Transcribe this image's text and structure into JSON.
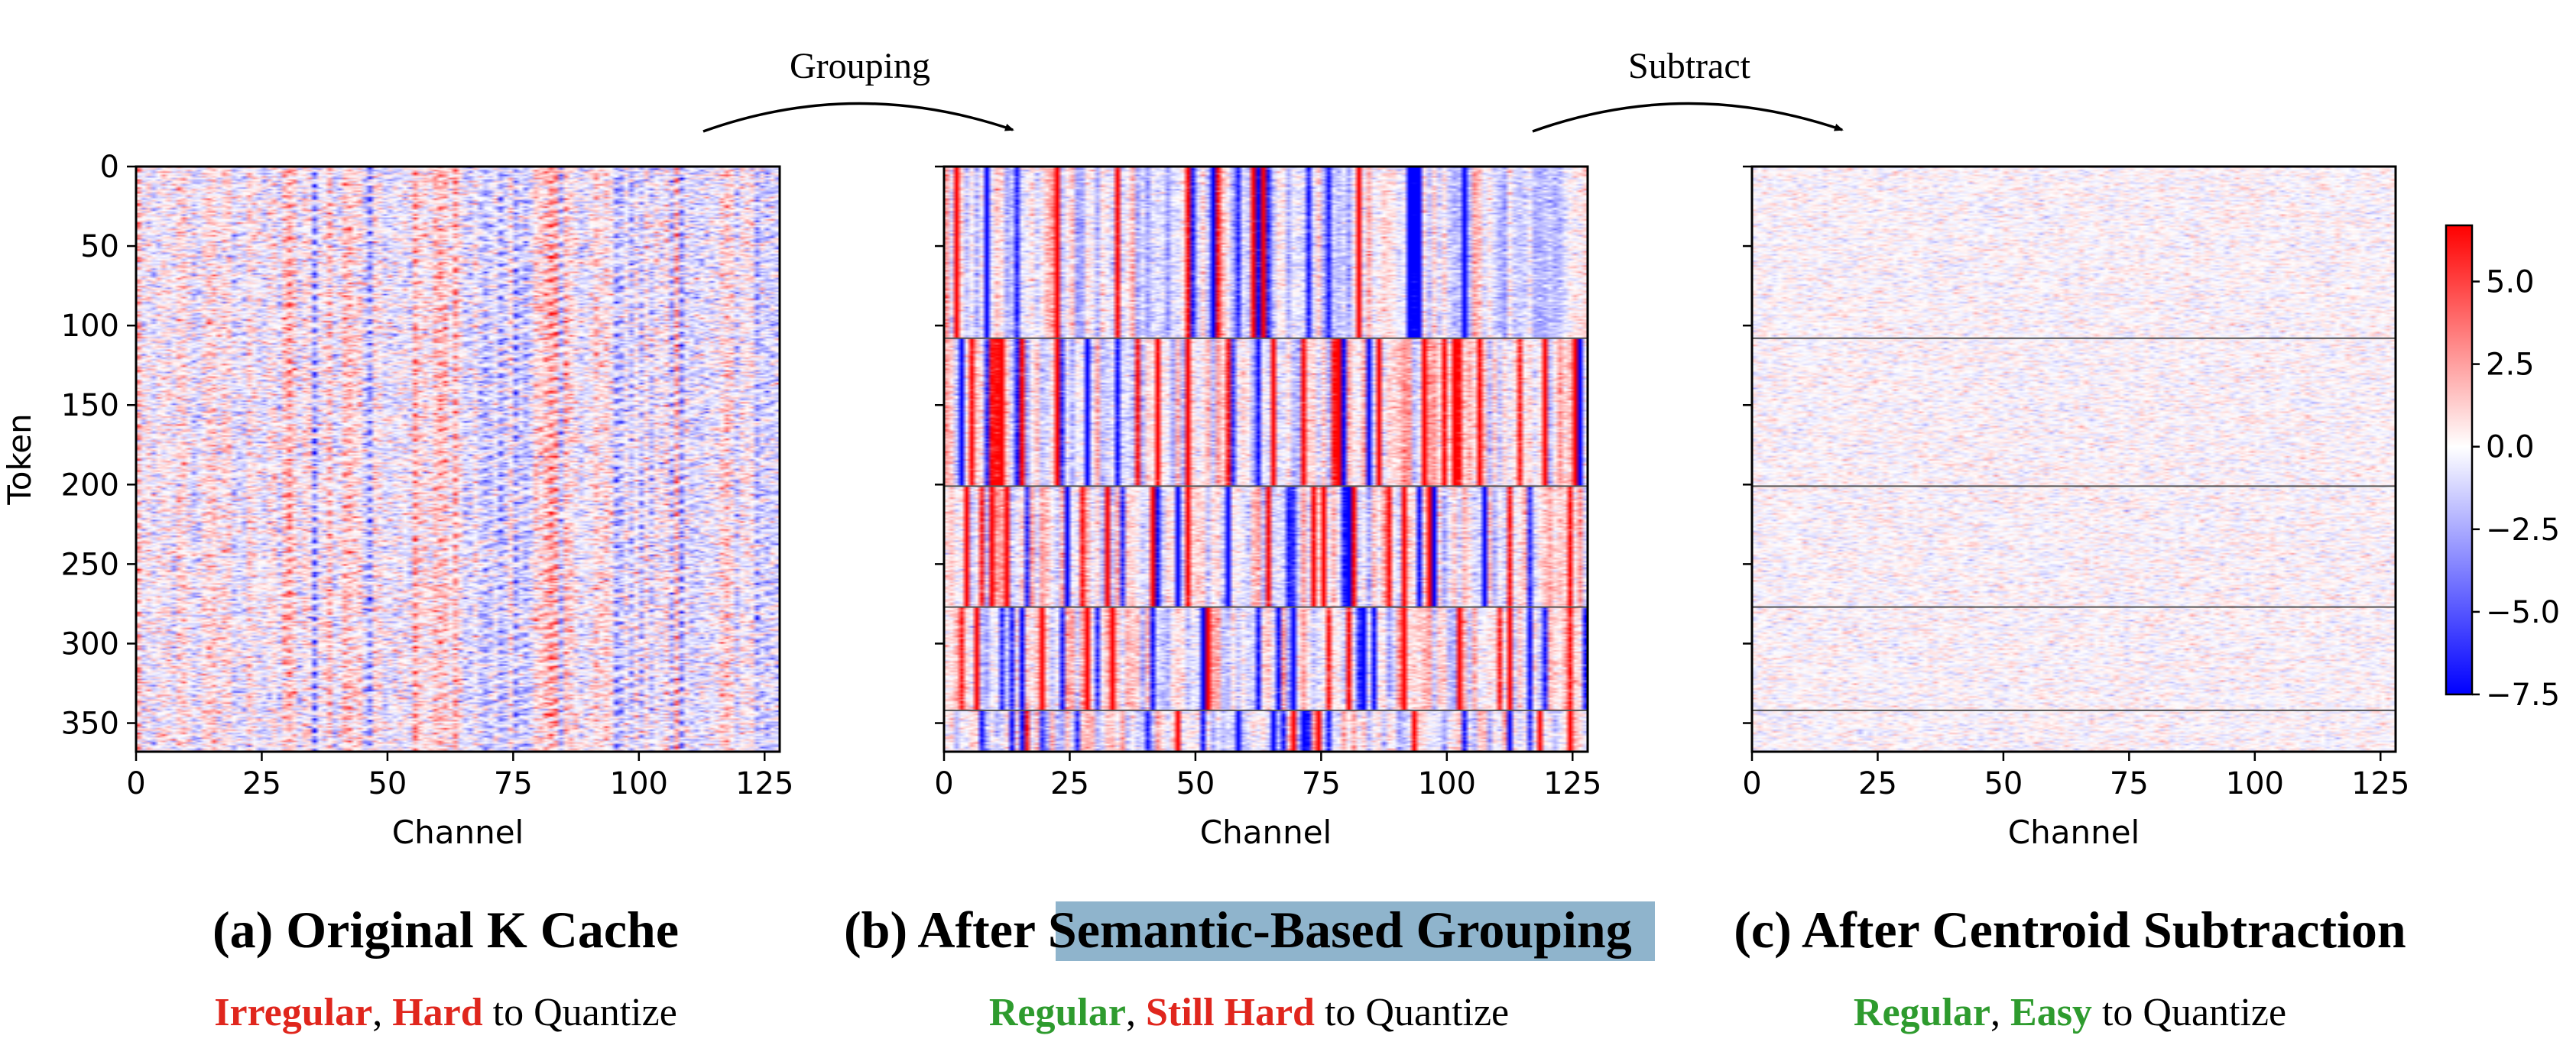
{
  "chart_data": [
    {
      "type": "heatmap",
      "panel": "a",
      "title": "(a) Original K Cache",
      "xlabel": "Channel",
      "ylabel": "Token",
      "x_range": [
        0,
        128
      ],
      "y_range": [
        0,
        368
      ],
      "x_ticks": [
        "0",
        "25",
        "50",
        "75",
        "100",
        "125"
      ],
      "y_ticks": [
        "0",
        "50",
        "100",
        "150",
        "200",
        "250",
        "300",
        "350"
      ],
      "group_boundaries": [],
      "caption": [
        {
          "text": "Irregular",
          "color": "#e0261d",
          "bold": true
        },
        {
          "text": ", ",
          "color": "#000000",
          "bold": false
        },
        {
          "text": "Hard",
          "color": "#e0261d",
          "bold": true
        },
        {
          "text": " to Quantize",
          "color": "#000000",
          "bold": false
        }
      ]
    },
    {
      "type": "heatmap",
      "panel": "b",
      "title_prefix": "(b) After ",
      "title_highlight": "Semantic-Based Grouping",
      "highlight_color": "#8fb4cc",
      "xlabel": "Channel",
      "ylabel": "",
      "x_range": [
        0,
        128
      ],
      "y_range": [
        0,
        368
      ],
      "x_ticks": [
        "0",
        "25",
        "50",
        "75",
        "100",
        "125"
      ],
      "group_boundaries": [
        108,
        201,
        277,
        342
      ],
      "caption": [
        {
          "text": "Regular",
          "color": "#2e9b2e",
          "bold": true
        },
        {
          "text": ", ",
          "color": "#000000",
          "bold": false
        },
        {
          "text": "Still Hard",
          "color": "#e0261d",
          "bold": true
        },
        {
          "text": " to Quantize",
          "color": "#000000",
          "bold": false
        }
      ]
    },
    {
      "type": "heatmap",
      "panel": "c",
      "title": "(c) After Centroid Subtraction",
      "xlabel": "Channel",
      "ylabel": "",
      "x_range": [
        0,
        128
      ],
      "y_range": [
        0,
        368
      ],
      "x_ticks": [
        "0",
        "25",
        "50",
        "75",
        "100",
        "125"
      ],
      "group_boundaries": [
        108,
        201,
        277,
        342
      ],
      "caption": [
        {
          "text": "Regular",
          "color": "#2e9b2e",
          "bold": true
        },
        {
          "text": ", ",
          "color": "#000000",
          "bold": false
        },
        {
          "text": "Easy",
          "color": "#2e9b2e",
          "bold": true
        },
        {
          "text": " to Quantize",
          "color": "#000000",
          "bold": false
        }
      ]
    }
  ],
  "colorbar": {
    "colormap": "bwr",
    "vmin": -7.5,
    "vmax": 6.7,
    "ticks": [
      "5.0",
      "2.5",
      "0.0",
      "−2.5",
      "−5.0",
      "−7.5"
    ],
    "tick_values": [
      5.0,
      2.5,
      0.0,
      -2.5,
      -5.0,
      -7.5
    ]
  },
  "arrows": [
    {
      "label": "Grouping"
    },
    {
      "label": "Subtract"
    }
  ]
}
